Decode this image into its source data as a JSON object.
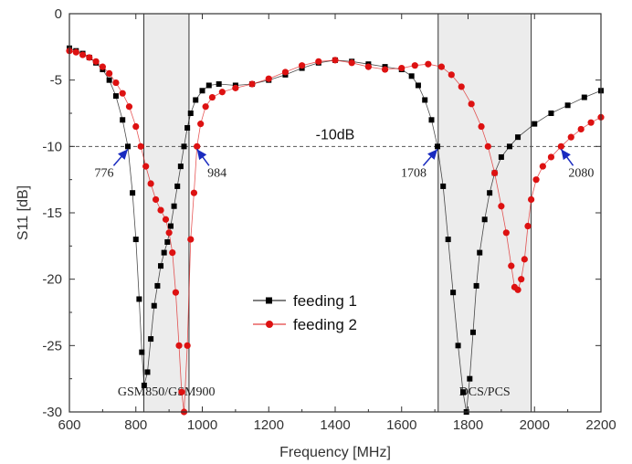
{
  "chart_data": {
    "type": "scatter",
    "xlabel": "Frequency [MHz]",
    "ylabel": "S11 [dB]",
    "xlim": [
      600,
      2200
    ],
    "ylim": [
      -30,
      0
    ],
    "xticks": [
      "600",
      "800",
      "1000",
      "1200",
      "1400",
      "1600",
      "1800",
      "2000",
      "2200"
    ],
    "yticks": [
      "0",
      "-5",
      "-10",
      "-15",
      "-20",
      "-25",
      "-30"
    ],
    "reference_line": {
      "y": -10,
      "label": "-10dB"
    },
    "bands": [
      {
        "label": "GSM850/GSM900",
        "x0": 824,
        "x1": 960
      },
      {
        "label": "DCS/PCS",
        "x0": 1710,
        "x1": 1990
      }
    ],
    "annotations": [
      {
        "text": "776",
        "x": 776,
        "y": -10
      },
      {
        "text": "984",
        "x": 984,
        "y": -10
      },
      {
        "text": "1708",
        "x": 1708,
        "y": -10
      },
      {
        "text": "2080",
        "x": 2080,
        "y": -10
      }
    ],
    "legend": {
      "location": "center"
    },
    "series": [
      {
        "name": "feeding 1",
        "color": "#000000",
        "marker": "square",
        "points": [
          [
            600,
            -2.6
          ],
          [
            620,
            -2.8
          ],
          [
            640,
            -3.0
          ],
          [
            660,
            -3.3
          ],
          [
            680,
            -3.7
          ],
          [
            700,
            -4.2
          ],
          [
            720,
            -5.0
          ],
          [
            740,
            -6.2
          ],
          [
            760,
            -8.0
          ],
          [
            776,
            -10.0
          ],
          [
            790,
            -13.5
          ],
          [
            800,
            -17.0
          ],
          [
            810,
            -21.5
          ],
          [
            818,
            -25.5
          ],
          [
            825,
            -28.0
          ],
          [
            835,
            -27.0
          ],
          [
            845,
            -24.5
          ],
          [
            855,
            -22.0
          ],
          [
            865,
            -20.5
          ],
          [
            875,
            -19.0
          ],
          [
            885,
            -18.0
          ],
          [
            895,
            -17.2
          ],
          [
            905,
            -16.0
          ],
          [
            915,
            -14.5
          ],
          [
            925,
            -13.0
          ],
          [
            935,
            -11.5
          ],
          [
            945,
            -10.0
          ],
          [
            955,
            -8.6
          ],
          [
            965,
            -7.5
          ],
          [
            980,
            -6.5
          ],
          [
            1000,
            -5.8
          ],
          [
            1020,
            -5.4
          ],
          [
            1050,
            -5.3
          ],
          [
            1100,
            -5.4
          ],
          [
            1150,
            -5.3
          ],
          [
            1200,
            -5.0
          ],
          [
            1250,
            -4.6
          ],
          [
            1300,
            -4.1
          ],
          [
            1350,
            -3.7
          ],
          [
            1400,
            -3.5
          ],
          [
            1450,
            -3.6
          ],
          [
            1500,
            -3.8
          ],
          [
            1550,
            -4.0
          ],
          [
            1600,
            -4.2
          ],
          [
            1630,
            -4.7
          ],
          [
            1650,
            -5.4
          ],
          [
            1670,
            -6.5
          ],
          [
            1690,
            -8.0
          ],
          [
            1708,
            -10.0
          ],
          [
            1725,
            -13.0
          ],
          [
            1740,
            -17.0
          ],
          [
            1755,
            -21.0
          ],
          [
            1770,
            -25.0
          ],
          [
            1785,
            -28.5
          ],
          [
            1795,
            -30.0
          ],
          [
            1805,
            -27.5
          ],
          [
            1815,
            -24.0
          ],
          [
            1825,
            -20.5
          ],
          [
            1835,
            -18.0
          ],
          [
            1850,
            -15.5
          ],
          [
            1865,
            -13.5
          ],
          [
            1880,
            -12.0
          ],
          [
            1900,
            -10.8
          ],
          [
            1925,
            -10.0
          ],
          [
            1950,
            -9.3
          ],
          [
            2000,
            -8.3
          ],
          [
            2050,
            -7.5
          ],
          [
            2100,
            -6.9
          ],
          [
            2150,
            -6.3
          ],
          [
            2200,
            -5.8
          ]
        ]
      },
      {
        "name": "feeding 2",
        "color": "#dd1111",
        "marker": "circle",
        "points": [
          [
            600,
            -2.8
          ],
          [
            620,
            -2.9
          ],
          [
            640,
            -3.1
          ],
          [
            660,
            -3.3
          ],
          [
            680,
            -3.6
          ],
          [
            700,
            -4.0
          ],
          [
            720,
            -4.5
          ],
          [
            740,
            -5.2
          ],
          [
            760,
            -6.0
          ],
          [
            780,
            -7.0
          ],
          [
            800,
            -8.5
          ],
          [
            815,
            -10.0
          ],
          [
            830,
            -11.5
          ],
          [
            845,
            -12.8
          ],
          [
            860,
            -14.0
          ],
          [
            875,
            -14.8
          ],
          [
            890,
            -15.5
          ],
          [
            900,
            -16.5
          ],
          [
            910,
            -18.0
          ],
          [
            920,
            -21.0
          ],
          [
            930,
            -25.0
          ],
          [
            938,
            -28.5
          ],
          [
            945,
            -30.0
          ],
          [
            955,
            -25.0
          ],
          [
            965,
            -17.0
          ],
          [
            975,
            -13.5
          ],
          [
            984,
            -10.0
          ],
          [
            995,
            -8.3
          ],
          [
            1010,
            -7.0
          ],
          [
            1030,
            -6.3
          ],
          [
            1060,
            -5.9
          ],
          [
            1100,
            -5.6
          ],
          [
            1150,
            -5.3
          ],
          [
            1200,
            -4.9
          ],
          [
            1250,
            -4.4
          ],
          [
            1300,
            -3.9
          ],
          [
            1350,
            -3.6
          ],
          [
            1400,
            -3.5
          ],
          [
            1450,
            -3.7
          ],
          [
            1500,
            -4.0
          ],
          [
            1550,
            -4.2
          ],
          [
            1600,
            -4.1
          ],
          [
            1640,
            -3.9
          ],
          [
            1680,
            -3.8
          ],
          [
            1720,
            -4.0
          ],
          [
            1750,
            -4.6
          ],
          [
            1780,
            -5.5
          ],
          [
            1810,
            -6.8
          ],
          [
            1840,
            -8.5
          ],
          [
            1860,
            -10.0
          ],
          [
            1880,
            -12.0
          ],
          [
            1900,
            -14.5
          ],
          [
            1915,
            -16.5
          ],
          [
            1930,
            -19.0
          ],
          [
            1940,
            -20.6
          ],
          [
            1950,
            -20.8
          ],
          [
            1960,
            -20.0
          ],
          [
            1970,
            -18.5
          ],
          [
            1980,
            -16.0
          ],
          [
            1990,
            -14.0
          ],
          [
            2005,
            -12.5
          ],
          [
            2025,
            -11.5
          ],
          [
            2050,
            -10.8
          ],
          [
            2080,
            -10.0
          ],
          [
            2110,
            -9.3
          ],
          [
            2140,
            -8.7
          ],
          [
            2170,
            -8.2
          ],
          [
            2200,
            -7.8
          ]
        ]
      }
    ]
  }
}
